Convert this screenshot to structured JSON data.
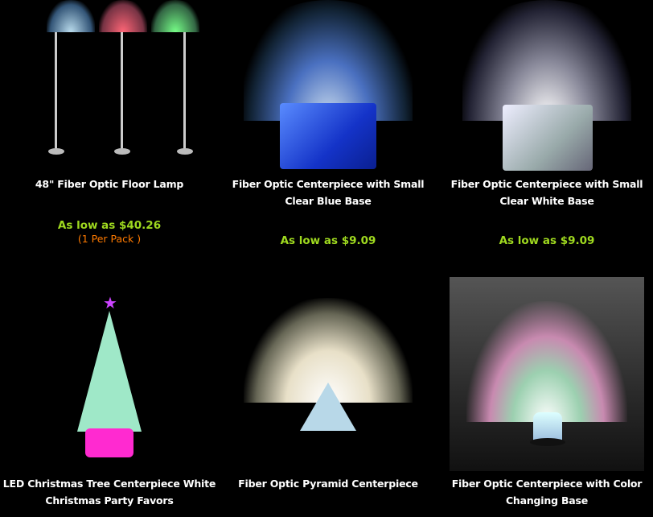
{
  "products": [
    {
      "title": "48\" Fiber Optic Floor Lamp",
      "price": "As low as $40.26",
      "pack": "(1 Per Pack )",
      "image": "floor-lamp-image"
    },
    {
      "title": "Fiber Optic Centerpiece with Small Clear Blue Base",
      "price": "As low as $9.09",
      "image": "blue-base-centerpiece-image"
    },
    {
      "title": "Fiber Optic Centerpiece with Small Clear White Base",
      "price": "As low as $9.09",
      "image": "white-base-centerpiece-image"
    },
    {
      "title": "LED Christmas Tree Centerpiece White Christmas Party Favors",
      "image": "christmas-tree-image"
    },
    {
      "title": "Fiber Optic Pyramid Centerpiece",
      "image": "pyramid-centerpiece-image"
    },
    {
      "title": "Fiber Optic Centerpiece with Color Changing Base",
      "image": "color-changing-centerpiece-image"
    }
  ],
  "colors": {
    "background": "#000000",
    "title": "#ffffff",
    "price": "#9fd91f",
    "pack": "#ff7a00"
  }
}
